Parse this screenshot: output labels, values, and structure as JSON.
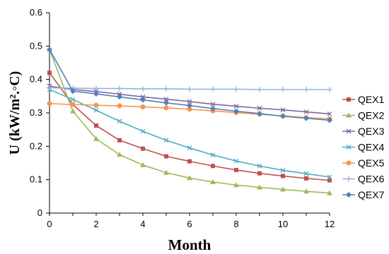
{
  "chart_data": {
    "type": "line",
    "xlabel": "Month",
    "ylabel": "U (kW/m².◦C)",
    "xlim": [
      0,
      12
    ],
    "ylim": [
      0,
      0.6
    ],
    "xticks": [
      "0",
      "2",
      "4",
      "6",
      "8",
      "10",
      "12"
    ],
    "yticks": [
      "0",
      "0.1",
      "0.2",
      "0.3",
      "0.4",
      "0.5",
      "0.6"
    ],
    "grid": false,
    "legend_position": "right",
    "x": [
      0,
      1,
      2,
      3,
      4,
      5,
      6,
      7,
      8,
      9,
      10,
      11,
      12
    ],
    "series": [
      {
        "name": "QEX1",
        "color": "#c0504d",
        "marker": "square",
        "values": [
          0.42,
          0.325,
          0.262,
          0.218,
          0.193,
          0.17,
          0.155,
          0.141,
          0.129,
          0.119,
          0.111,
          0.104,
          0.098
        ]
      },
      {
        "name": "QEX2",
        "color": "#9bbb59",
        "marker": "triangle",
        "values": [
          0.49,
          0.305,
          0.222,
          0.175,
          0.144,
          0.121,
          0.105,
          0.093,
          0.084,
          0.077,
          0.071,
          0.065,
          0.06
        ]
      },
      {
        "name": "QEX3",
        "color": "#8064a2",
        "marker": "x",
        "values": [
          0.38,
          0.37,
          0.364,
          0.356,
          0.348,
          0.341,
          0.334,
          0.326,
          0.32,
          0.314,
          0.309,
          0.303,
          0.297
        ]
      },
      {
        "name": "QEX4",
        "color": "#4bacc6",
        "marker": "x",
        "values": [
          0.37,
          0.34,
          0.308,
          0.275,
          0.245,
          0.218,
          0.195,
          0.174,
          0.156,
          0.141,
          0.128,
          0.118,
          0.108
        ]
      },
      {
        "name": "QEX5",
        "color": "#f79646",
        "marker": "circle",
        "values": [
          0.328,
          0.325,
          0.323,
          0.321,
          0.318,
          0.315,
          0.311,
          0.306,
          0.301,
          0.296,
          0.291,
          0.286,
          0.282
        ]
      },
      {
        "name": "QEX6",
        "color": "#95b3d7",
        "marker": "plus",
        "values": [
          0.375,
          0.374,
          0.373,
          0.373,
          0.372,
          0.372,
          0.371,
          0.371,
          0.371,
          0.37,
          0.37,
          0.37,
          0.37
        ]
      },
      {
        "name": "QEX7",
        "color": "#4f81bd",
        "marker": "diamond",
        "values": [
          0.49,
          0.365,
          0.357,
          0.348,
          0.339,
          0.33,
          0.322,
          0.313,
          0.305,
          0.298,
          0.29,
          0.284,
          0.278
        ]
      }
    ]
  }
}
